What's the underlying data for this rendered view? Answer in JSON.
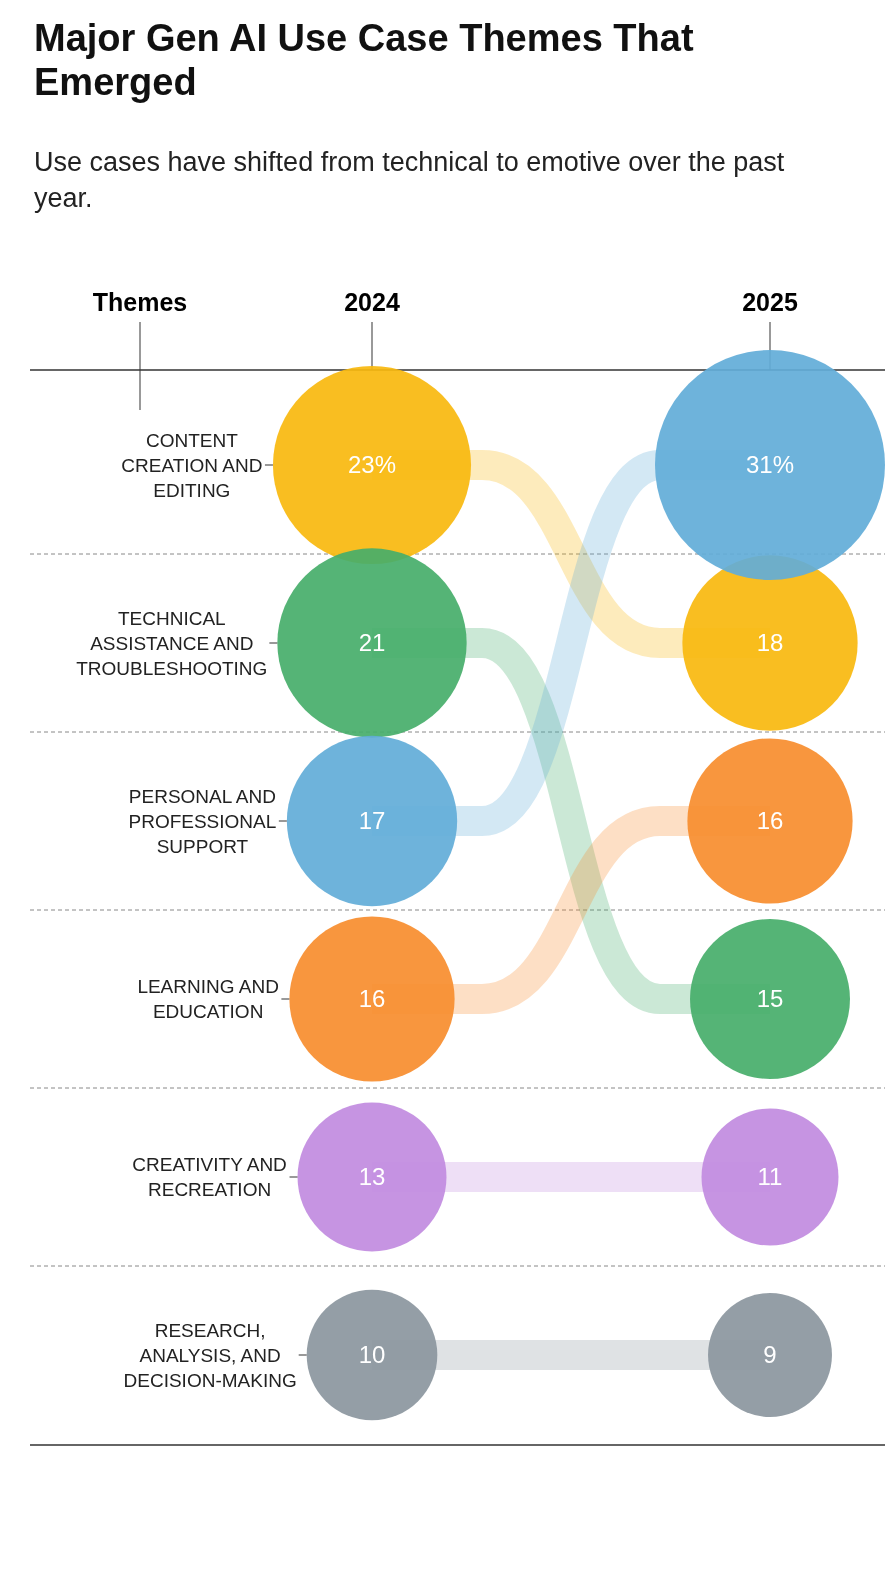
{
  "chart_data": {
    "type": "other",
    "title": "Major Gen AI Use Case Themes That Emerged",
    "subtitle": "Use cases have shifted from technical to emotive over the past year.",
    "legend_title": "Themes",
    "categories": [
      "2024",
      "2025"
    ],
    "series": [
      {
        "name": "CONTENT CREATION AND EDITING",
        "color": "#f9b80e",
        "values": [
          23,
          18
        ],
        "value_labels": [
          "23%",
          "18"
        ]
      },
      {
        "name": "TECHNICAL ASSISTANCE AND TROUBLESHOOTING",
        "color": "#46ae6a",
        "values": [
          21,
          15
        ],
        "value_labels": [
          "21",
          "15"
        ]
      },
      {
        "name": "PERSONAL AND PROFESSIONAL SUPPORT",
        "color": "#62acd8",
        "values": [
          17,
          31
        ],
        "value_labels": [
          "17",
          "31%"
        ]
      },
      {
        "name": "LEARNING AND EDUCATION",
        "color": "#f78d2e",
        "values": [
          16,
          16
        ],
        "value_labels": [
          "16",
          "16"
        ]
      },
      {
        "name": "CREATIVITY AND RECREATION",
        "color": "#c18be0",
        "values": [
          13,
          11
        ],
        "value_labels": [
          "13",
          "11"
        ]
      },
      {
        "name": "RESEARCH, ANALYSIS, AND DECISION-MAKING",
        "color": "#8b969e",
        "values": [
          10,
          9
        ],
        "value_labels": [
          "10",
          "9"
        ]
      }
    ]
  }
}
